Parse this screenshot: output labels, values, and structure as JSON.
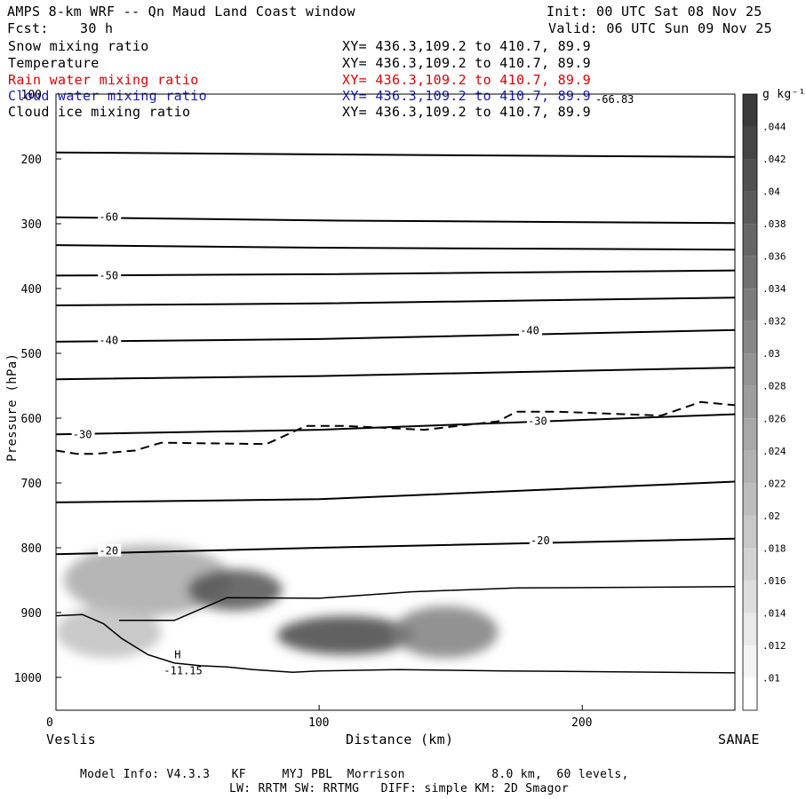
{
  "header": {
    "title": "AMPS 8-km WRF -- Qn Maud Land Coast window",
    "init": "Init: 00 UTC Sat 08 Nov 25",
    "fcst_label": "Fcst:",
    "fcst_value": "30 h",
    "valid": "Valid: 06 UTC Sun 09 Nov 25"
  },
  "fields": [
    {
      "name": "Snow mixing ratio",
      "xy": "XY= 436.3,109.2 to 410.7, 89.9"
    },
    {
      "name": "Temperature",
      "xy": "XY= 436.3,109.2 to 410.7, 89.9"
    },
    {
      "name": "Rain water mixing ratio",
      "xy": "XY= 436.3,109.2 to 410.7, 89.9"
    },
    {
      "name": "Cloud water mixing ratio",
      "xy": "XY= 436.3,109.2 to 410.7, 89.9"
    },
    {
      "name": "Cloud ice mixing ratio",
      "xy": "XY= 436.3,109.2 to 410.7, 89.9"
    }
  ],
  "colors": {
    "rain_field": "#e00000",
    "cloud_water_field": "#1a1acc",
    "shade_max": "#3a3a3a"
  },
  "endpoints": {
    "left": "Veslis",
    "right": "SANAE"
  },
  "footer": {
    "line1": "Model Info: V4.3.3   KF     MYJ PBL  Morrison            8.0 km,  60 levels,",
    "line2": "LW: RRTM SW: RRTMG   DIFF: simple KM: 2D Smagor"
  },
  "chart_data": {
    "type": "contour",
    "xlabel": "Distance (km)",
    "ylabel": "Pressure (hPa)",
    "xlim": [
      0,
      258
    ],
    "ylim": [
      1050,
      100
    ],
    "x_ticks": [
      0,
      100,
      200
    ],
    "y_ticks": [
      100,
      200,
      300,
      400,
      500,
      600,
      700,
      800,
      900,
      1000
    ],
    "colorbar": {
      "unit": "g kg⁻¹",
      "levels": [
        ".01",
        ".012",
        ".014",
        ".016",
        ".018",
        ".02",
        ".022",
        ".024",
        ".026",
        ".028",
        ".03",
        ".032",
        ".034",
        ".036",
        ".038",
        ".04",
        ".042",
        ".044"
      ]
    },
    "isotherms": [
      {
        "x": [
          0,
          100,
          258
        ],
        "y": [
          190,
          193,
          197
        ]
      },
      {
        "x": [
          0,
          100,
          258
        ],
        "y": [
          290,
          295,
          299
        ],
        "label": "-60",
        "lx": 20,
        "ly": 290
      },
      {
        "x": [
          0,
          100,
          258
        ],
        "y": [
          333,
          337,
          340
        ]
      },
      {
        "x": [
          0,
          100,
          258
        ],
        "y": [
          380,
          378,
          372
        ],
        "label": "-50",
        "lx": 20,
        "ly": 380
      },
      {
        "x": [
          0,
          100,
          258
        ],
        "y": [
          426,
          423,
          414
        ]
      },
      {
        "x": [
          0,
          100,
          258
        ],
        "y": [
          482,
          478,
          464
        ],
        "label": "-40",
        "lx": 20,
        "ly": 480
      },
      {
        "x": [
          0,
          100,
          258
        ],
        "y": [
          540,
          535,
          522
        ]
      },
      {
        "x": [
          0,
          100,
          258
        ],
        "y": [
          625,
          618,
          594
        ],
        "label": "-30",
        "lx": 10,
        "ly": 625
      },
      {
        "x": [
          0,
          100,
          258
        ],
        "y": [
          730,
          725,
          698
        ]
      },
      {
        "x": [
          0,
          100,
          258
        ],
        "y": [
          810,
          800,
          786
        ],
        "label": "-20",
        "lx": 20,
        "ly": 805
      }
    ],
    "isotherm_labels_extra": [
      {
        "text": "-40",
        "x": 180,
        "y": 465
      },
      {
        "text": "-30",
        "x": 183,
        "y": 605
      },
      {
        "text": "-20",
        "x": 184,
        "y": 789
      }
    ],
    "warm_contour": {
      "x": [
        24,
        45,
        65,
        100,
        135,
        175,
        258
      ],
      "y": [
        912,
        912,
        877,
        878,
        868,
        862,
        860
      ]
    },
    "terrain": {
      "x": [
        0,
        10,
        18,
        25,
        35,
        45,
        55,
        65,
        75,
        90,
        100,
        130,
        170,
        258
      ],
      "y": [
        905,
        903,
        917,
        940,
        965,
        978,
        982,
        984,
        988,
        992,
        990,
        988,
        990,
        993
      ]
    },
    "terrain_label": {
      "text": "H",
      "x": 45,
      "y": 965
    },
    "min_label": {
      "text": "-11.15",
      "x": 41,
      "y": 990
    },
    "max_label": {
      "text": "-66.83",
      "x": 205,
      "y": 108
    },
    "dashed_contour": {
      "x": [
        0,
        8,
        15,
        30,
        40,
        80,
        95,
        110,
        140,
        168,
        175,
        190,
        230,
        245,
        258
      ],
      "y": [
        650,
        655,
        655,
        650,
        638,
        640,
        612,
        612,
        618,
        605,
        590,
        590,
        596,
        575,
        580
      ]
    },
    "shading": [
      {
        "x": 35,
        "p": 850,
        "sx": 32,
        "sp": 55,
        "v": 0.02
      },
      {
        "x": 68,
        "p": 865,
        "sx": 18,
        "sp": 32,
        "v": 0.04
      },
      {
        "x": 110,
        "p": 935,
        "sx": 26,
        "sp": 30,
        "v": 0.043
      },
      {
        "x": 148,
        "p": 930,
        "sx": 20,
        "sp": 40,
        "v": 0.03
      },
      {
        "x": 20,
        "p": 930,
        "sx": 20,
        "sp": 40,
        "v": 0.015
      }
    ]
  }
}
